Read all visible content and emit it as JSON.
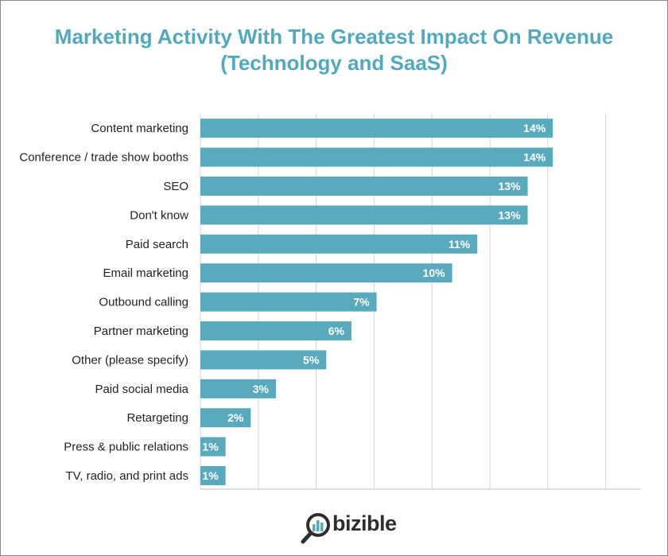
{
  "chart_data": {
    "type": "bar",
    "orientation": "horizontal",
    "title_line1": "Marketing Activity With The Greatest Impact On Revenue",
    "title_line2": "(Technology and SaaS)",
    "categories": [
      "Content marketing",
      "Conference / trade show booths",
      "SEO",
      "Don't know",
      "Paid search",
      "Email marketing",
      "Outbound calling",
      "Partner marketing",
      "Other (please specify)",
      "Paid social media",
      "Retargeting",
      "Press & public relations",
      "TV, radio, and print ads"
    ],
    "values": [
      14,
      14,
      13,
      13,
      11,
      10,
      7,
      6,
      5,
      3,
      2,
      1,
      1
    ],
    "value_labels": [
      "14%",
      "14%",
      "13%",
      "13%",
      "11%",
      "10%",
      "7%",
      "6%",
      "5%",
      "3%",
      "2%",
      "1%",
      "1%"
    ],
    "xlim": [
      0,
      17.5
    ],
    "grid_step": 2.3,
    "grid": true,
    "bar_color": "#5aaabe",
    "label_color": "#ffffff",
    "title_color": "#52a8bd"
  },
  "branding": {
    "logo_text": "bizible"
  }
}
